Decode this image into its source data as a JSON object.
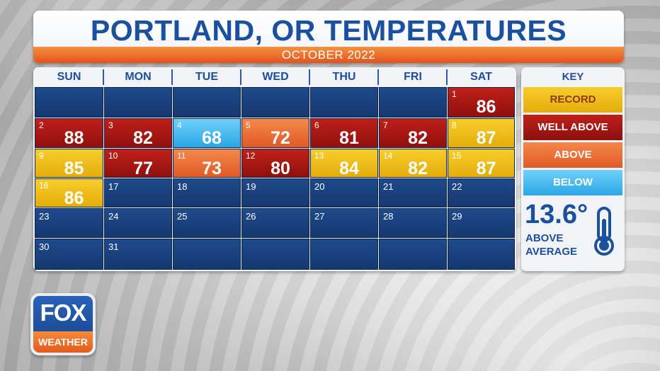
{
  "title": "PORTLAND, OR TEMPERATURES",
  "subtitle": "OCTOBER 2022",
  "days_of_week": [
    "SUN",
    "MON",
    "TUE",
    "WED",
    "THU",
    "FRI",
    "SAT"
  ],
  "colors": {
    "record": "#f2c01e",
    "well_above": "#b3191a",
    "above": "#ee7438",
    "below": "#4ebcf1",
    "normal": "#1b4585",
    "title_blue": "#1b4fa0"
  },
  "calendar": [
    [
      null,
      null,
      null,
      null,
      null,
      null,
      {
        "day": "1",
        "temp": "86",
        "category": "well"
      }
    ],
    [
      {
        "day": "2",
        "temp": "88",
        "category": "well"
      },
      {
        "day": "3",
        "temp": "82",
        "category": "well"
      },
      {
        "day": "4",
        "temp": "68",
        "category": "below"
      },
      {
        "day": "5",
        "temp": "72",
        "category": "above"
      },
      {
        "day": "6",
        "temp": "81",
        "category": "well"
      },
      {
        "day": "7",
        "temp": "82",
        "category": "well"
      },
      {
        "day": "8",
        "temp": "87",
        "category": "record"
      }
    ],
    [
      {
        "day": "9",
        "temp": "85",
        "category": "record"
      },
      {
        "day": "10",
        "temp": "77",
        "category": "well"
      },
      {
        "day": "11",
        "temp": "73",
        "category": "above"
      },
      {
        "day": "12",
        "temp": "80",
        "category": "well"
      },
      {
        "day": "13",
        "temp": "84",
        "category": "record"
      },
      {
        "day": "14",
        "temp": "82",
        "category": "record"
      },
      {
        "day": "15",
        "temp": "87",
        "category": "record"
      }
    ],
    [
      {
        "day": "16",
        "temp": "86",
        "category": "record"
      },
      {
        "day": "17"
      },
      {
        "day": "18"
      },
      {
        "day": "19"
      },
      {
        "day": "20"
      },
      {
        "day": "21"
      },
      {
        "day": "22"
      }
    ],
    [
      {
        "day": "23"
      },
      {
        "day": "24"
      },
      {
        "day": "25"
      },
      {
        "day": "26"
      },
      {
        "day": "27"
      },
      {
        "day": "28"
      },
      {
        "day": "29"
      }
    ],
    [
      {
        "day": "30"
      },
      {
        "day": "31"
      },
      null,
      null,
      null,
      null,
      null
    ]
  ],
  "key": {
    "title": "KEY",
    "items": [
      {
        "label": "RECORD",
        "category": "record"
      },
      {
        "label": "WELL ABOVE",
        "category": "well"
      },
      {
        "label": "ABOVE",
        "category": "above"
      },
      {
        "label": "BELOW",
        "category": "below"
      }
    ],
    "anomaly_value": "13.6°",
    "anomaly_label": "ABOVE AVERAGE",
    "icon": "thermometer-icon"
  },
  "logo": {
    "line1": "FOX",
    "line2": "WEATHER"
  }
}
